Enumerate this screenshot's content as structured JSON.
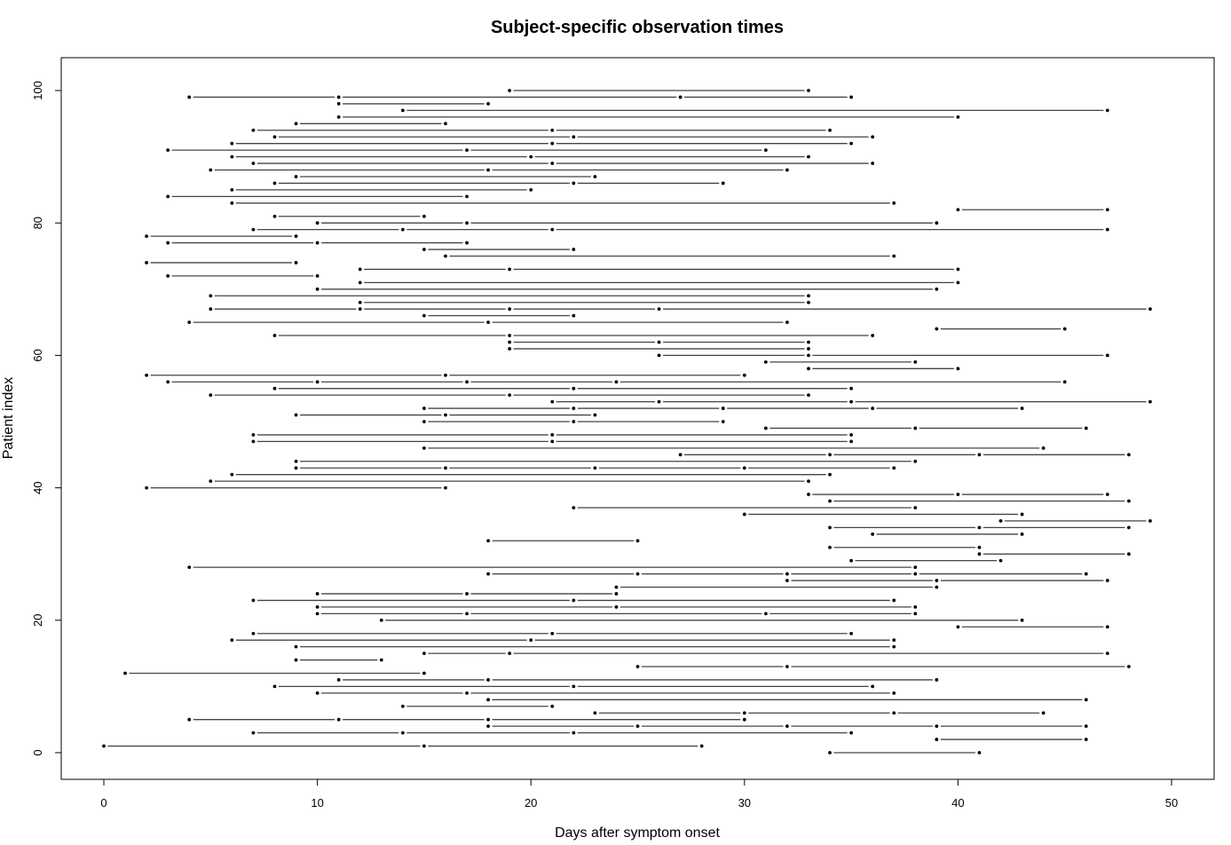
{
  "chart_data": {
    "type": "scatter",
    "title": "Subject-specific observation times",
    "xlabel": "Days after symptom onset",
    "ylabel": "Patient index",
    "xlim": [
      -2,
      52
    ],
    "ylim": [
      -4,
      105
    ],
    "xticks": [
      0,
      10,
      20,
      30,
      40,
      50
    ],
    "yticks": [
      0,
      20,
      40,
      60,
      80,
      100
    ],
    "grid": false,
    "legend": "none",
    "subjects": [
      {
        "id": 1,
        "times": [
          34,
          41
        ]
      },
      {
        "id": 2,
        "times": [
          0,
          15,
          28
        ]
      },
      {
        "id": 3,
        "times": [
          39,
          46
        ]
      },
      {
        "id": 4,
        "times": [
          7,
          14,
          22,
          35
        ]
      },
      {
        "id": 5,
        "times": [
          18,
          25,
          32,
          39,
          46
        ]
      },
      {
        "id": 6,
        "times": [
          4,
          11,
          18,
          30
        ]
      },
      {
        "id": 7,
        "times": [
          23,
          30,
          37,
          44
        ]
      },
      {
        "id": 8,
        "times": [
          14,
          21
        ]
      },
      {
        "id": 9,
        "times": [
          18,
          46
        ]
      },
      {
        "id": 10,
        "times": [
          10,
          17,
          37
        ]
      },
      {
        "id": 11,
        "times": [
          8,
          22,
          36
        ]
      },
      {
        "id": 12,
        "times": [
          11,
          18,
          39
        ]
      },
      {
        "id": 13,
        "times": [
          1,
          15
        ]
      },
      {
        "id": 14,
        "times": [
          25,
          32,
          48
        ]
      },
      {
        "id": 15,
        "times": [
          9,
          13
        ]
      },
      {
        "id": 16,
        "times": [
          15,
          19,
          47
        ]
      },
      {
        "id": 17,
        "times": [
          9,
          37
        ]
      },
      {
        "id": 18,
        "times": [
          6,
          20,
          37
        ]
      },
      {
        "id": 19,
        "times": [
          7,
          21,
          35
        ]
      },
      {
        "id": 20,
        "times": [
          40,
          47
        ]
      },
      {
        "id": 21,
        "times": [
          13,
          43
        ]
      },
      {
        "id": 22,
        "times": [
          10,
          17,
          31,
          38
        ]
      },
      {
        "id": 23,
        "times": [
          10,
          24,
          38
        ]
      },
      {
        "id": 24,
        "times": [
          7,
          22,
          37
        ]
      },
      {
        "id": 25,
        "times": [
          10,
          17,
          24
        ]
      },
      {
        "id": 26,
        "times": [
          24,
          39
        ]
      },
      {
        "id": 27,
        "times": [
          32,
          39,
          47
        ]
      },
      {
        "id": 28,
        "times": [
          18,
          25,
          32,
          38,
          46
        ]
      },
      {
        "id": 29,
        "times": [
          4,
          38
        ]
      },
      {
        "id": 30,
        "times": [
          35,
          42
        ]
      },
      {
        "id": 31,
        "times": [
          41,
          48
        ]
      },
      {
        "id": 32,
        "times": [
          34,
          41
        ]
      },
      {
        "id": 33,
        "times": [
          18,
          25
        ]
      },
      {
        "id": 34,
        "times": [
          36,
          43
        ]
      },
      {
        "id": 35,
        "times": [
          34,
          41,
          48
        ]
      },
      {
        "id": 36,
        "times": [
          42,
          49
        ]
      },
      {
        "id": 37,
        "times": [
          30,
          43
        ]
      },
      {
        "id": 38,
        "times": [
          22,
          38
        ]
      },
      {
        "id": 39,
        "times": [
          34,
          48
        ]
      },
      {
        "id": 40,
        "times": [
          33,
          40,
          47
        ]
      },
      {
        "id": 41,
        "times": [
          2,
          16
        ]
      },
      {
        "id": 42,
        "times": [
          5,
          33
        ]
      },
      {
        "id": 43,
        "times": [
          6,
          34
        ]
      },
      {
        "id": 44,
        "times": [
          9,
          16,
          23,
          30,
          37
        ]
      },
      {
        "id": 45,
        "times": [
          9,
          38
        ]
      },
      {
        "id": 46,
        "times": [
          27,
          34,
          41,
          48
        ]
      },
      {
        "id": 47,
        "times": [
          15,
          44
        ]
      },
      {
        "id": 48,
        "times": [
          7,
          21,
          35
        ]
      },
      {
        "id": 49,
        "times": [
          7,
          21,
          35
        ]
      },
      {
        "id": 50,
        "times": [
          31,
          38,
          46
        ]
      },
      {
        "id": 51,
        "times": [
          15,
          22,
          29
        ]
      },
      {
        "id": 52,
        "times": [
          9,
          16,
          23
        ]
      },
      {
        "id": 53,
        "times": [
          15,
          22,
          29,
          36,
          43
        ]
      },
      {
        "id": 54,
        "times": [
          21,
          26,
          35,
          49
        ]
      },
      {
        "id": 55,
        "times": [
          5,
          19,
          33
        ]
      },
      {
        "id": 56,
        "times": [
          8,
          22,
          35
        ]
      },
      {
        "id": 57,
        "times": [
          3,
          10,
          17,
          24,
          45
        ]
      },
      {
        "id": 58,
        "times": [
          2,
          16,
          30
        ]
      },
      {
        "id": 59,
        "times": [
          33,
          40
        ]
      },
      {
        "id": 60,
        "times": [
          31,
          38
        ]
      },
      {
        "id": 61,
        "times": [
          26,
          33,
          47
        ]
      },
      {
        "id": 62,
        "times": [
          19,
          33
        ]
      },
      {
        "id": 63,
        "times": [
          19,
          26,
          33
        ]
      },
      {
        "id": 64,
        "times": [
          8,
          19,
          36
        ]
      },
      {
        "id": 65,
        "times": [
          39,
          45
        ]
      },
      {
        "id": 66,
        "times": [
          4,
          18,
          32
        ]
      },
      {
        "id": 67,
        "times": [
          15,
          22
        ]
      },
      {
        "id": 68,
        "times": [
          5,
          12,
          19,
          26,
          49
        ]
      },
      {
        "id": 69,
        "times": [
          12,
          33
        ]
      },
      {
        "id": 70,
        "times": [
          5,
          33
        ]
      },
      {
        "id": 71,
        "times": [
          10,
          39
        ]
      },
      {
        "id": 72,
        "times": [
          12,
          40
        ]
      },
      {
        "id": 73,
        "times": [
          3,
          10
        ]
      },
      {
        "id": 74,
        "times": [
          12,
          19,
          40
        ]
      },
      {
        "id": 75,
        "times": [
          2,
          9
        ]
      },
      {
        "id": 76,
        "times": [
          16,
          37
        ]
      },
      {
        "id": 77,
        "times": [
          15,
          22
        ]
      },
      {
        "id": 78,
        "times": [
          3,
          10,
          17
        ]
      },
      {
        "id": 79,
        "times": [
          2,
          9
        ]
      },
      {
        "id": 80,
        "times": [
          7,
          14,
          21,
          47
        ]
      },
      {
        "id": 81,
        "times": [
          10,
          17,
          39
        ]
      },
      {
        "id": 82,
        "times": [
          8,
          15
        ]
      },
      {
        "id": 83,
        "times": [
          40,
          47
        ]
      },
      {
        "id": 84,
        "times": [
          6,
          37
        ]
      },
      {
        "id": 85,
        "times": [
          3,
          17
        ]
      },
      {
        "id": 86,
        "times": [
          6,
          20
        ]
      },
      {
        "id": 87,
        "times": [
          8,
          22,
          29
        ]
      },
      {
        "id": 88,
        "times": [
          9,
          23
        ]
      },
      {
        "id": 89,
        "times": [
          5,
          18,
          32
        ]
      },
      {
        "id": 90,
        "times": [
          7,
          21,
          36
        ]
      },
      {
        "id": 91,
        "times": [
          6,
          20,
          33
        ]
      },
      {
        "id": 92,
        "times": [
          3,
          17,
          31
        ]
      },
      {
        "id": 93,
        "times": [
          6,
          21,
          35
        ]
      },
      {
        "id": 94,
        "times": [
          8,
          22,
          36
        ]
      },
      {
        "id": 95,
        "times": [
          7,
          21,
          34
        ]
      },
      {
        "id": 96,
        "times": [
          9,
          16
        ]
      },
      {
        "id": 97,
        "times": [
          11,
          40
        ]
      },
      {
        "id": 98,
        "times": [
          14,
          47
        ]
      },
      {
        "id": 99,
        "times": [
          11,
          18
        ]
      },
      {
        "id": 100,
        "times": [
          4,
          11,
          27,
          35
        ]
      },
      {
        "id": 101,
        "times": [
          19,
          33
        ]
      }
    ]
  }
}
